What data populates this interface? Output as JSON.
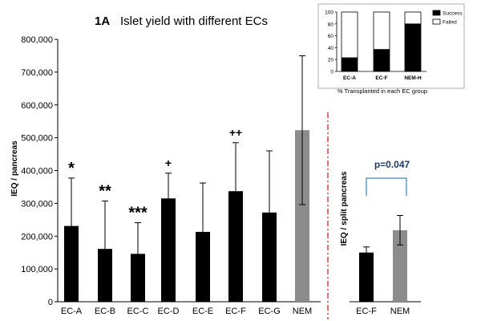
{
  "chart_data": [
    {
      "id": "main",
      "type": "bar",
      "title_label": "1A",
      "title": "Islet yield with different ECs",
      "ylabel": "IEQ / pancreas",
      "ylim": [
        0,
        800000
      ],
      "yticks": [
        "0",
        "100,000",
        "200,000",
        "300,000",
        "400,000",
        "500,000",
        "600,000",
        "700,000",
        "800,000"
      ],
      "ytick_values": [
        0,
        100000,
        200000,
        300000,
        400000,
        500000,
        600000,
        700000,
        800000
      ],
      "categories": [
        "EC-A",
        "EC-B",
        "EC-C",
        "EC-D",
        "EC-E",
        "EC-F",
        "EC-G",
        "NEM"
      ],
      "values": [
        231000,
        161000,
        146000,
        315000,
        213000,
        337000,
        272000,
        523000
      ],
      "error_upper": [
        377000,
        307000,
        241000,
        392000,
        362000,
        485000,
        460000,
        750000
      ],
      "error_lower": [
        null,
        null,
        null,
        null,
        null,
        null,
        null,
        296000
      ],
      "bar_colors": [
        "#000000",
        "#000000",
        "#000000",
        "#000000",
        "#000000",
        "#000000",
        "#000000",
        "#8c8c8c"
      ],
      "annotations": [
        "*",
        "**",
        "***",
        "+",
        "",
        "++",
        "",
        ""
      ]
    },
    {
      "id": "split",
      "type": "bar",
      "ylabel": "IEQ / split pancreas",
      "categories": [
        "EC-F",
        "NEM"
      ],
      "values": [
        150000,
        218000
      ],
      "error_upper": [
        167000,
        263000
      ],
      "error_lower": [
        135000,
        173000
      ],
      "bar_colors": [
        "#000000",
        "#8c8c8c"
      ],
      "annotation": "p=0.047"
    },
    {
      "id": "inset",
      "type": "bar",
      "stacked": true,
      "xlabel": "% Transplanted in each EC group",
      "ylim": [
        0,
        100
      ],
      "yticks": [
        "0",
        "20",
        "40",
        "60",
        "80",
        "100"
      ],
      "ytick_values": [
        0,
        20,
        40,
        60,
        80,
        100
      ],
      "categories": [
        "EC-A",
        "EC-F",
        "NEM-H"
      ],
      "series": [
        {
          "name": "Success",
          "values": [
            23,
            37,
            80
          ],
          "color": "#000000"
        },
        {
          "name": "Failed",
          "values": [
            77,
            63,
            20
          ],
          "color": "#ffffff"
        }
      ],
      "legend_position": "right"
    }
  ]
}
